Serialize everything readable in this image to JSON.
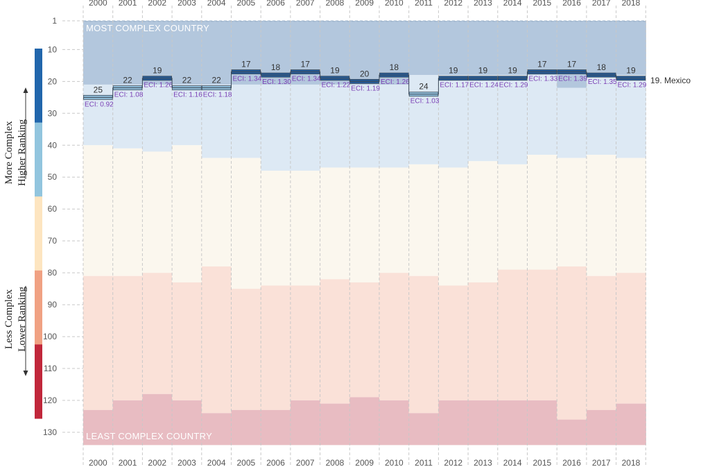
{
  "chart_data": {
    "type": "area",
    "title": "",
    "country": "Mexico",
    "end_label": "19. Mexico",
    "years": [
      "2000",
      "2001",
      "2002",
      "2003",
      "2004",
      "2005",
      "2006",
      "2007",
      "2008",
      "2009",
      "2010",
      "2011",
      "2012",
      "2013",
      "2014",
      "2015",
      "2016",
      "2017",
      "2018"
    ],
    "ranks": [
      25,
      22,
      19,
      22,
      22,
      17,
      18,
      17,
      19,
      20,
      18,
      24,
      19,
      19,
      19,
      17,
      17,
      18,
      19
    ],
    "eci_labels": [
      "ECI: 0.92",
      "ECI: 1.08",
      "ECI: 1.26",
      "ECI: 1.16",
      "ECI: 1.18",
      "ECI: 1.34",
      "ECI: 1.30",
      "ECI: 1.34",
      "ECI: 1.22",
      "ECI: 1.19",
      "ECI: 1.26",
      "ECI: 1.03",
      "ECI: 1.17",
      "ECI: 1.24",
      "ECI: 1.29",
      "ECI: 1.33",
      "ECI: 1.39",
      "ECI: 1.35",
      "ECI: 1.29"
    ],
    "band_boundaries": {
      "b1": [
        21,
        21,
        21,
        21,
        21,
        21,
        21,
        21,
        21,
        21,
        21,
        18,
        18,
        18,
        18,
        18,
        22,
        18,
        18
      ],
      "b2": [
        40,
        41,
        42,
        40,
        44,
        44,
        48,
        48,
        47,
        47,
        47,
        46,
        47,
        45,
        46,
        43,
        44,
        43,
        44
      ],
      "b3": [
        81,
        81,
        80,
        83,
        78,
        85,
        84,
        84,
        82,
        83,
        80,
        81,
        84,
        83,
        79,
        79,
        78,
        81,
        80
      ],
      "b4": [
        123,
        120,
        118,
        120,
        124,
        123,
        123,
        120,
        121,
        119,
        120,
        124,
        120,
        120,
        120,
        120,
        126,
        123,
        121
      ],
      "max": [
        134,
        134,
        134,
        134,
        134,
        134,
        134,
        134,
        134,
        134,
        134,
        134,
        134,
        134,
        134,
        134,
        134,
        134,
        134
      ]
    },
    "y_ticks": [
      1,
      10,
      20,
      30,
      40,
      50,
      60,
      70,
      80,
      90,
      100,
      110,
      120,
      130
    ],
    "y_range": [
      1,
      134
    ],
    "top_band_label": "MOST COMPLEX COUNTRY",
    "bottom_band_label": "LEAST COMPLEX COUNTRY",
    "side_label_top": [
      "More Complex",
      "Higher Ranking"
    ],
    "side_label_bottom": [
      "Less Complex",
      "Lower Ranking"
    ],
    "colors": {
      "band0": "#b3c7dd",
      "band1": "#dde9f4",
      "band2": "#fbf7ee",
      "band3": "#fae1d8",
      "band4": "#e8bcc2",
      "scale": [
        "#2166ac",
        "#92c5de",
        "#fde5c0",
        "#f0a183",
        "#c1273b"
      ],
      "marker_dark": "#255a96",
      "marker_light": "#90bcd8",
      "eci_text": "#7a3fb5"
    }
  }
}
